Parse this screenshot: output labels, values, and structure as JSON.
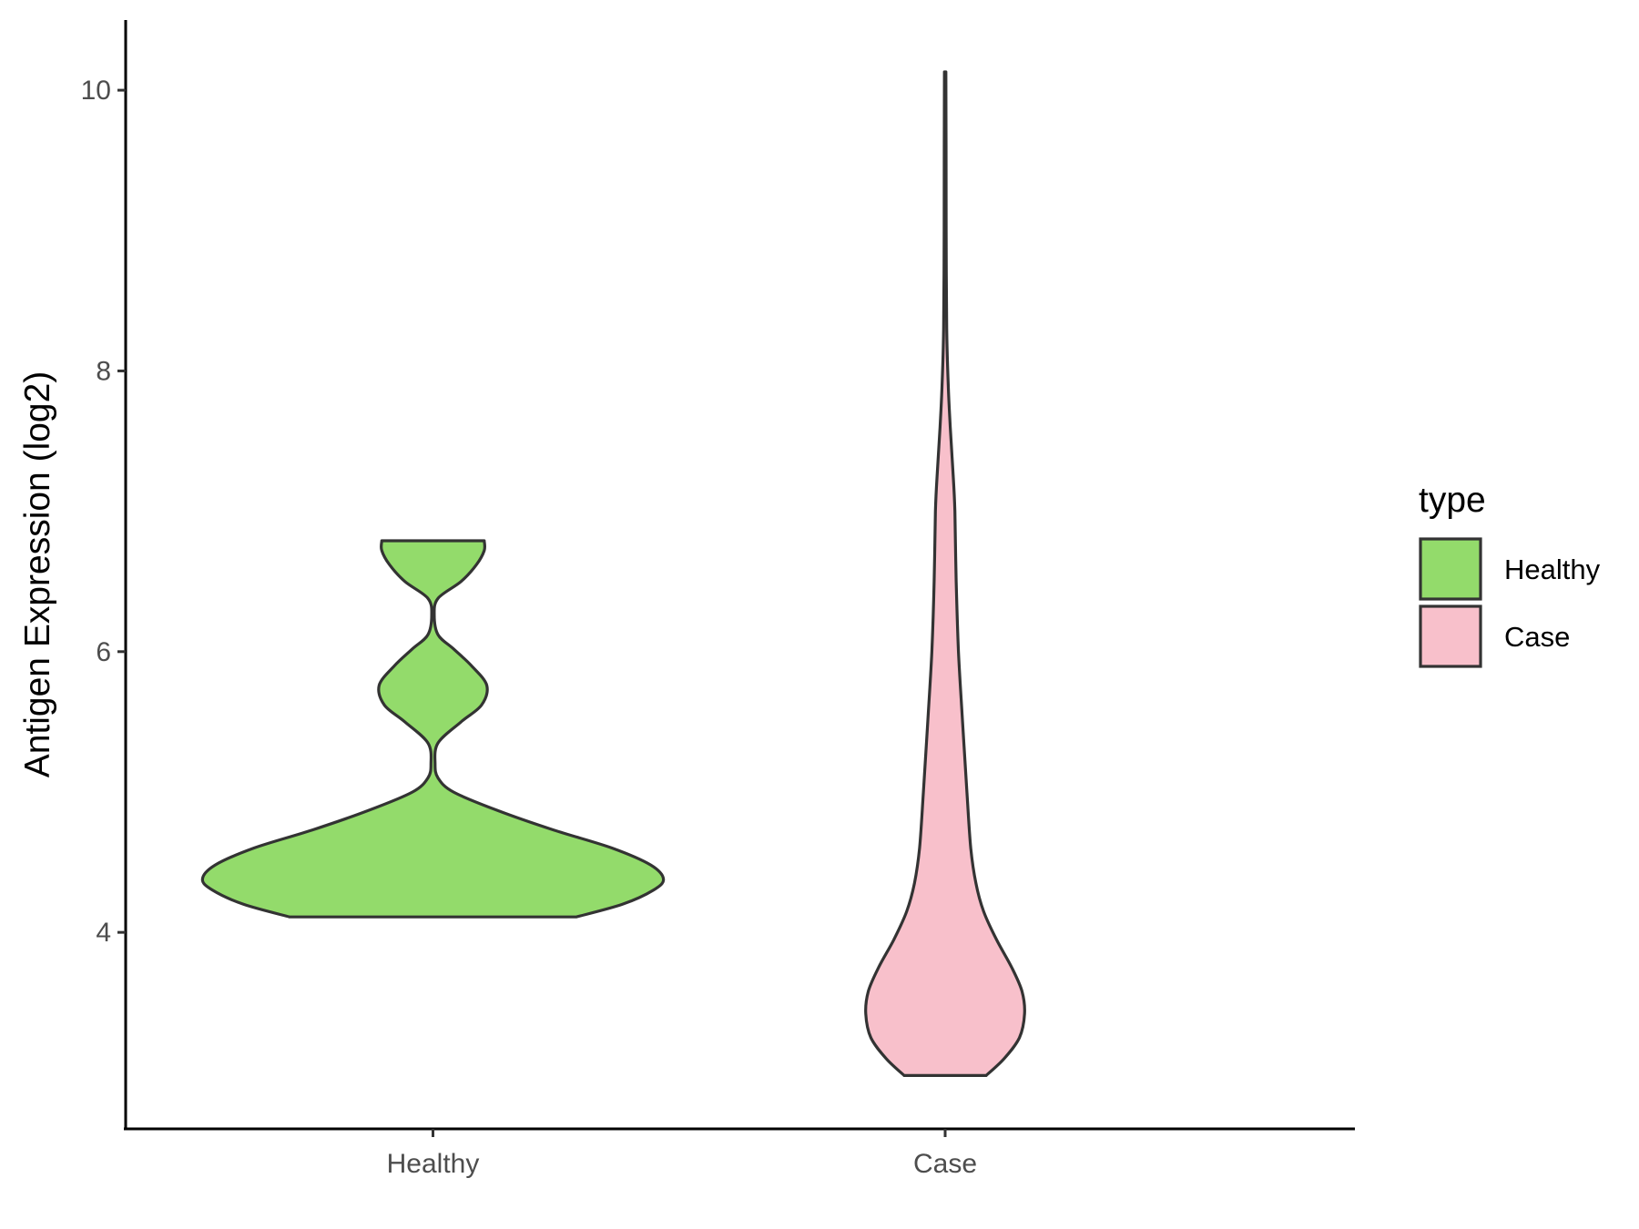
{
  "chart_data": {
    "type": "violin",
    "ylabel": "Antigen Expression (log2)",
    "xlabel": "",
    "categories": [
      "Healthy",
      "Case"
    ],
    "ylim": [
      2.6,
      10.5
    ],
    "yticks": [
      4,
      6,
      8,
      10
    ],
    "grid": false,
    "legend": {
      "title": "type",
      "position": "right",
      "entries": [
        {
          "label": "Healthy",
          "color": "#93db6b"
        },
        {
          "label": "Case",
          "color": "#f8c0cb"
        }
      ]
    },
    "series": [
      {
        "category": "Healthy",
        "color": "#93db6b",
        "range": [
          4.11,
          6.79
        ],
        "density": [
          {
            "y": 4.11,
            "w": 0.56
          },
          {
            "y": 4.2,
            "w": 0.74
          },
          {
            "y": 4.3,
            "w": 0.86
          },
          {
            "y": 4.38,
            "w": 0.9
          },
          {
            "y": 4.48,
            "w": 0.85
          },
          {
            "y": 4.6,
            "w": 0.7
          },
          {
            "y": 4.73,
            "w": 0.47
          },
          {
            "y": 4.87,
            "w": 0.25
          },
          {
            "y": 5.0,
            "w": 0.08
          },
          {
            "y": 5.1,
            "w": 0.02
          },
          {
            "y": 5.2,
            "w": 0.008
          },
          {
            "y": 5.35,
            "w": 0.02
          },
          {
            "y": 5.5,
            "w": 0.11
          },
          {
            "y": 5.62,
            "w": 0.19
          },
          {
            "y": 5.76,
            "w": 0.21
          },
          {
            "y": 5.9,
            "w": 0.15
          },
          {
            "y": 6.02,
            "w": 0.08
          },
          {
            "y": 6.12,
            "w": 0.02
          },
          {
            "y": 6.26,
            "w": 0.005
          },
          {
            "y": 6.38,
            "w": 0.02
          },
          {
            "y": 6.5,
            "w": 0.11
          },
          {
            "y": 6.62,
            "w": 0.17
          },
          {
            "y": 6.72,
            "w": 0.2
          },
          {
            "y": 6.79,
            "w": 0.2
          }
        ]
      },
      {
        "category": "Case",
        "color": "#f8c0cb",
        "range": [
          2.98,
          10.13
        ],
        "density": [
          {
            "y": 2.98,
            "w": 0.16
          },
          {
            "y": 3.1,
            "w": 0.23
          },
          {
            "y": 3.25,
            "w": 0.29
          },
          {
            "y": 3.42,
            "w": 0.31
          },
          {
            "y": 3.58,
            "w": 0.3
          },
          {
            "y": 3.75,
            "w": 0.26
          },
          {
            "y": 3.95,
            "w": 0.2
          },
          {
            "y": 4.15,
            "w": 0.15
          },
          {
            "y": 4.35,
            "w": 0.12
          },
          {
            "y": 4.6,
            "w": 0.1
          },
          {
            "y": 5.0,
            "w": 0.085
          },
          {
            "y": 5.5,
            "w": 0.068
          },
          {
            "y": 6.0,
            "w": 0.052
          },
          {
            "y": 6.5,
            "w": 0.043
          },
          {
            "y": 7.0,
            "w": 0.038
          },
          {
            "y": 7.3,
            "w": 0.03
          },
          {
            "y": 7.6,
            "w": 0.02
          },
          {
            "y": 7.9,
            "w": 0.012
          },
          {
            "y": 8.3,
            "w": 0.006
          },
          {
            "y": 9.0,
            "w": 0.004
          },
          {
            "y": 9.6,
            "w": 0.0035
          },
          {
            "y": 10.13,
            "w": 0.003
          }
        ]
      }
    ]
  }
}
